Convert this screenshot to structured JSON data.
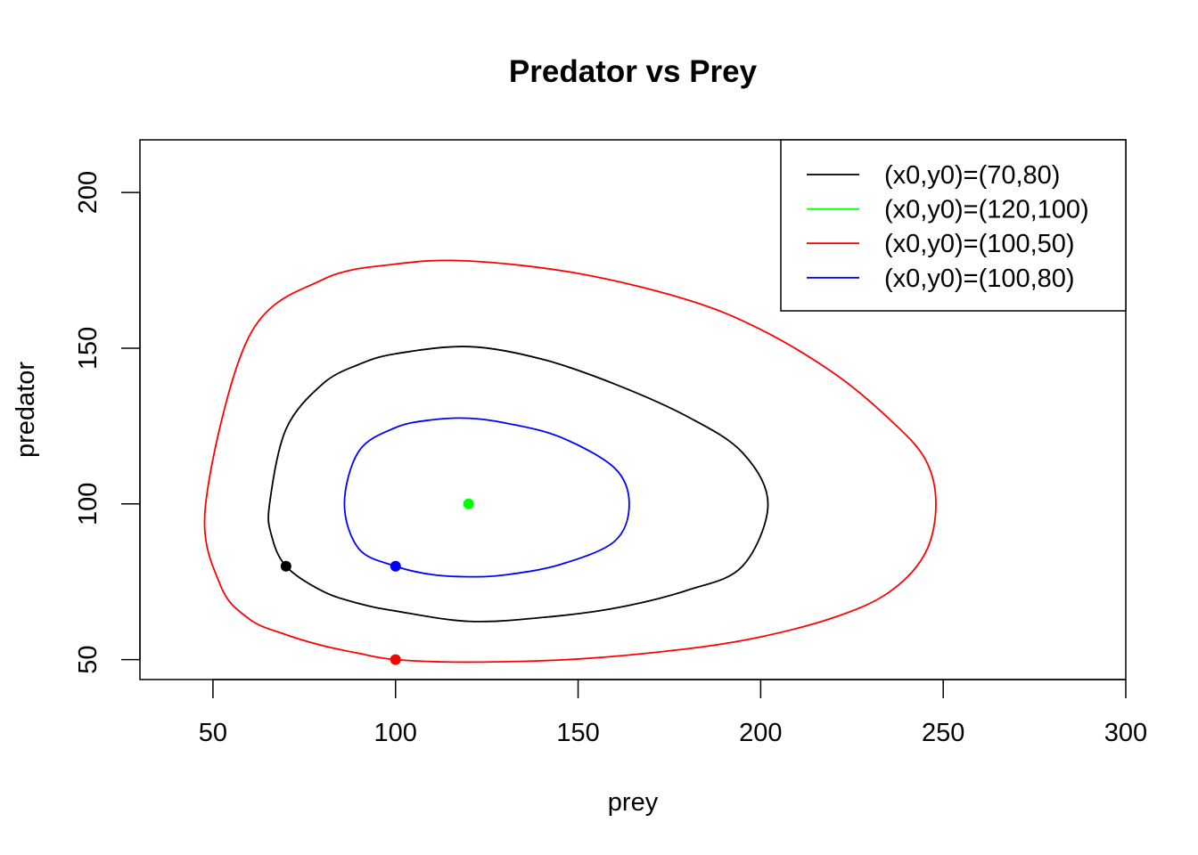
{
  "chart_data": {
    "type": "line",
    "title": "Predator vs Prey",
    "xlabel": "prey",
    "ylabel": "predator",
    "xlim": [
      30,
      300
    ],
    "ylim": [
      43.6,
      216.9
    ],
    "xticks": [
      50,
      100,
      150,
      200,
      250,
      300
    ],
    "yticks": [
      50,
      100,
      150,
      200
    ],
    "grid": false,
    "legend_position": "top-right",
    "equilibrium": {
      "x": 120,
      "y": 100
    },
    "series": [
      {
        "name": "(x0,y0)=(70,80)",
        "color": "#000000",
        "start": {
          "x": 70,
          "y": 80
        },
        "x": [
          70,
          80,
          90,
          100,
          120,
          140,
          160,
          180,
          195,
          202,
          195,
          180,
          160,
          140,
          120,
          100,
          90,
          80,
          70,
          65.5,
          66,
          70
        ],
        "y": [
          80,
          72,
          68,
          65.6,
          62.3,
          63.5,
          66.5,
          72.3,
          80,
          100,
          116.5,
          128,
          138.5,
          146.5,
          150.5,
          148.2,
          144.8,
          138.5,
          124,
          100,
          90,
          80
        ]
      },
      {
        "name": "(x0,y0)=(120,100)",
        "color": "#00ff00",
        "start": {
          "x": 120,
          "y": 100
        },
        "x": [
          120
        ],
        "y": [
          100
        ]
      },
      {
        "name": "(x0,y0)=(100,50)",
        "color": "#ff0000",
        "start": {
          "x": 100,
          "y": 50
        },
        "x": [
          100,
          120,
          150,
          180,
          200,
          220,
          235,
          245,
          248,
          245,
          235,
          220,
          200,
          180,
          150,
          120,
          100,
          80,
          60,
          48,
          52,
          60,
          70,
          80,
          90,
          100
        ],
        "y": [
          50,
          49.2,
          50.2,
          53.5,
          57.3,
          63.5,
          71.5,
          84,
          100,
          114.5,
          127.5,
          142,
          156,
          165.5,
          174,
          178,
          177,
          172,
          154,
          100,
          74,
          63,
          58,
          54.5,
          52,
          50
        ]
      },
      {
        "name": "(x0,y0)=(100,80)",
        "color": "#0000ff",
        "start": {
          "x": 100,
          "y": 80
        },
        "x": [
          100,
          110,
          120,
          130,
          145,
          160,
          164,
          160,
          145,
          130,
          120,
          110,
          100,
          90,
          86,
          90,
          100
        ],
        "y": [
          80,
          77.3,
          76.6,
          77.2,
          80.5,
          88,
          100,
          111.5,
          121.5,
          126,
          127.5,
          127,
          124.5,
          117,
          100,
          85.5,
          80
        ]
      }
    ]
  }
}
